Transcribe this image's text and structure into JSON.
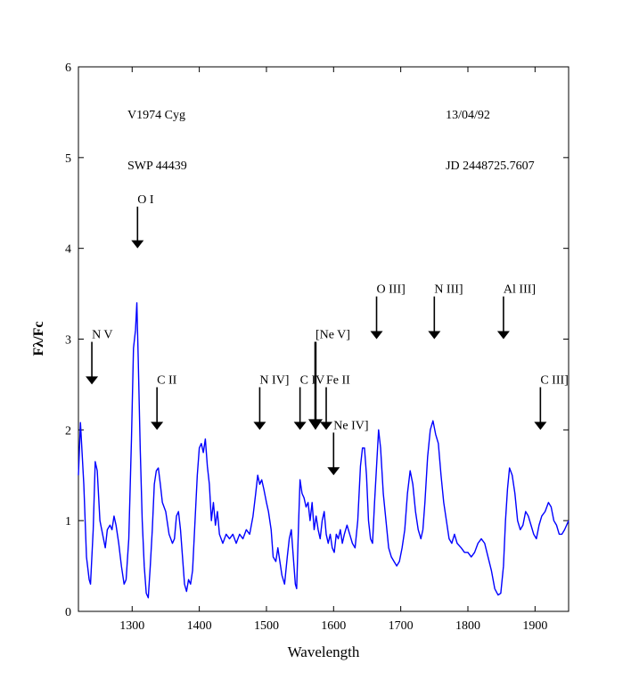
{
  "chart_data": {
    "type": "line",
    "xlabel": "Wavelength",
    "ylabel": "Fλ/Fc",
    "xlim": [
      1220,
      1950
    ],
    "xticks": [
      1300,
      1400,
      1500,
      1600,
      1700,
      1800,
      1900
    ],
    "ylim": [
      0,
      6
    ],
    "yticks": [
      0,
      1,
      2,
      3,
      4,
      5,
      6
    ],
    "color": "#0000ff",
    "x": [
      1220,
      1223,
      1228,
      1232,
      1236,
      1238,
      1242,
      1245,
      1248,
      1252,
      1256,
      1260,
      1263,
      1267,
      1270,
      1273,
      1276,
      1280,
      1284,
      1288,
      1291,
      1295,
      1299,
      1302,
      1305,
      1307,
      1309,
      1312,
      1315,
      1318,
      1321,
      1324,
      1327,
      1330,
      1333,
      1336,
      1339,
      1342,
      1345,
      1350,
      1355,
      1360,
      1363,
      1366,
      1369,
      1372,
      1375,
      1378,
      1381,
      1384,
      1387,
      1390,
      1393,
      1397,
      1400,
      1403,
      1406,
      1409,
      1412,
      1415,
      1418,
      1421,
      1424,
      1427,
      1430,
      1435,
      1440,
      1445,
      1450,
      1455,
      1460,
      1465,
      1470,
      1475,
      1480,
      1484,
      1487,
      1490,
      1493,
      1496,
      1500,
      1503,
      1507,
      1510,
      1514,
      1517,
      1520,
      1523,
      1527,
      1531,
      1534,
      1537,
      1540,
      1543,
      1545,
      1548,
      1550,
      1553,
      1556,
      1559,
      1562,
      1565,
      1568,
      1571,
      1574,
      1577,
      1580,
      1583,
      1586,
      1589,
      1592,
      1595,
      1598,
      1601,
      1604,
      1607,
      1610,
      1613,
      1616,
      1620,
      1624,
      1628,
      1632,
      1636,
      1640,
      1643,
      1646,
      1649,
      1652,
      1655,
      1658,
      1661,
      1664,
      1667,
      1670,
      1674,
      1678,
      1682,
      1686,
      1690,
      1694,
      1698,
      1702,
      1706,
      1710,
      1714,
      1718,
      1722,
      1726,
      1730,
      1733,
      1736,
      1740,
      1744,
      1748,
      1752,
      1756,
      1760,
      1764,
      1768,
      1772,
      1776,
      1780,
      1784,
      1790,
      1795,
      1800,
      1805,
      1810,
      1815,
      1820,
      1825,
      1830,
      1835,
      1840,
      1845,
      1849,
      1853,
      1856,
      1859,
      1862,
      1866,
      1870,
      1874,
      1878,
      1882,
      1886,
      1890,
      1894,
      1898,
      1902,
      1906,
      1910,
      1915,
      1920,
      1924,
      1928,
      1932,
      1936,
      1940,
      1944,
      1950
    ],
    "values": [
      1.5,
      2.08,
      1.4,
      0.6,
      0.35,
      0.3,
      0.9,
      1.65,
      1.55,
      1.0,
      0.85,
      0.7,
      0.9,
      0.95,
      0.9,
      1.05,
      0.95,
      0.75,
      0.5,
      0.3,
      0.35,
      0.8,
      1.9,
      2.9,
      3.1,
      3.4,
      2.8,
      1.8,
      1.0,
      0.5,
      0.2,
      0.15,
      0.5,
      0.9,
      1.4,
      1.55,
      1.58,
      1.4,
      1.2,
      1.1,
      0.85,
      0.75,
      0.8,
      1.05,
      1.1,
      0.9,
      0.6,
      0.3,
      0.22,
      0.35,
      0.3,
      0.45,
      0.9,
      1.5,
      1.8,
      1.85,
      1.75,
      1.9,
      1.6,
      1.4,
      1.0,
      1.2,
      0.95,
      1.1,
      0.85,
      0.75,
      0.85,
      0.8,
      0.85,
      0.75,
      0.85,
      0.8,
      0.9,
      0.85,
      1.05,
      1.3,
      1.5,
      1.4,
      1.45,
      1.35,
      1.2,
      1.1,
      0.9,
      0.6,
      0.55,
      0.7,
      0.55,
      0.4,
      0.3,
      0.6,
      0.8,
      0.9,
      0.6,
      0.3,
      0.25,
      1.0,
      1.45,
      1.3,
      1.25,
      1.15,
      1.2,
      1.0,
      1.2,
      0.9,
      1.05,
      0.9,
      0.8,
      1.0,
      1.1,
      0.85,
      0.75,
      0.85,
      0.7,
      0.65,
      0.85,
      0.8,
      0.9,
      0.75,
      0.85,
      0.95,
      0.85,
      0.75,
      0.7,
      1.0,
      1.6,
      1.8,
      1.8,
      1.5,
      1.0,
      0.8,
      0.75,
      1.2,
      1.6,
      2.0,
      1.8,
      1.3,
      1.0,
      0.7,
      0.6,
      0.55,
      0.5,
      0.55,
      0.7,
      0.9,
      1.3,
      1.55,
      1.4,
      1.1,
      0.9,
      0.8,
      0.9,
      1.2,
      1.7,
      2.0,
      2.1,
      1.95,
      1.85,
      1.5,
      1.2,
      1.0,
      0.8,
      0.75,
      0.85,
      0.75,
      0.7,
      0.65,
      0.65,
      0.6,
      0.65,
      0.75,
      0.8,
      0.75,
      0.6,
      0.45,
      0.25,
      0.18,
      0.2,
      0.5,
      1.0,
      1.35,
      1.58,
      1.5,
      1.3,
      1.0,
      0.9,
      0.95,
      1.1,
      1.05,
      0.95,
      0.85,
      0.8,
      0.95,
      1.05,
      1.1,
      1.2,
      1.15,
      1.0,
      0.95,
      0.85,
      0.85,
      0.9,
      1.0
    ],
    "texts": [
      {
        "text": "V1974 Cyg",
        "x": 1293,
        "y": 5.43
      },
      {
        "text": "SWP 44439",
        "x": 1293,
        "y": 4.87
      },
      {
        "text": "13/04/92",
        "x": 1767,
        "y": 5.43
      },
      {
        "text": "JD 2448725.7607",
        "x": 1767,
        "y": 4.87
      }
    ],
    "annotations": [
      {
        "text": "N V",
        "xy": [
          1240,
          2.5
        ],
        "xytext": [
          1240,
          2.97
        ]
      },
      {
        "text": "O I",
        "xy": [
          1308,
          4.0
        ],
        "xytext": [
          1308,
          4.46
        ]
      },
      {
        "text": "C II",
        "xy": [
          1337,
          2.0
        ],
        "xytext": [
          1337,
          2.47
        ]
      },
      {
        "text": "N IV]",
        "xy": [
          1490,
          2.0
        ],
        "xytext": [
          1490,
          2.47
        ]
      },
      {
        "text": "C IV",
        "xy": [
          1550,
          2.0
        ],
        "xytext": [
          1550,
          2.47
        ]
      },
      {
        "text": "[Ne V]",
        "xy": [
          1573,
          2.0
        ],
        "xytext": [
          1573,
          2.97
        ]
      },
      {
        "text": "Fe II",
        "xy": [
          1589,
          2.0
        ],
        "xytext": [
          1589,
          2.47
        ]
      },
      {
        "text": "Ne IV]",
        "xy": [
          1600,
          1.5
        ],
        "xytext": [
          1600,
          1.97
        ]
      },
      {
        "text": "O III]",
        "xy": [
          1664,
          3.0
        ],
        "xytext": [
          1664,
          3.47
        ]
      },
      {
        "text": "N III]",
        "xy": [
          1750,
          3.0
        ],
        "xytext": [
          1750,
          3.47
        ]
      },
      {
        "text": "Al III]",
        "xy": [
          1853,
          3.0
        ],
        "xytext": [
          1853,
          3.47
        ]
      },
      {
        "text": "C III]",
        "xy": [
          1908,
          2.0
        ],
        "xytext": [
          1908,
          2.47
        ]
      }
    ]
  }
}
